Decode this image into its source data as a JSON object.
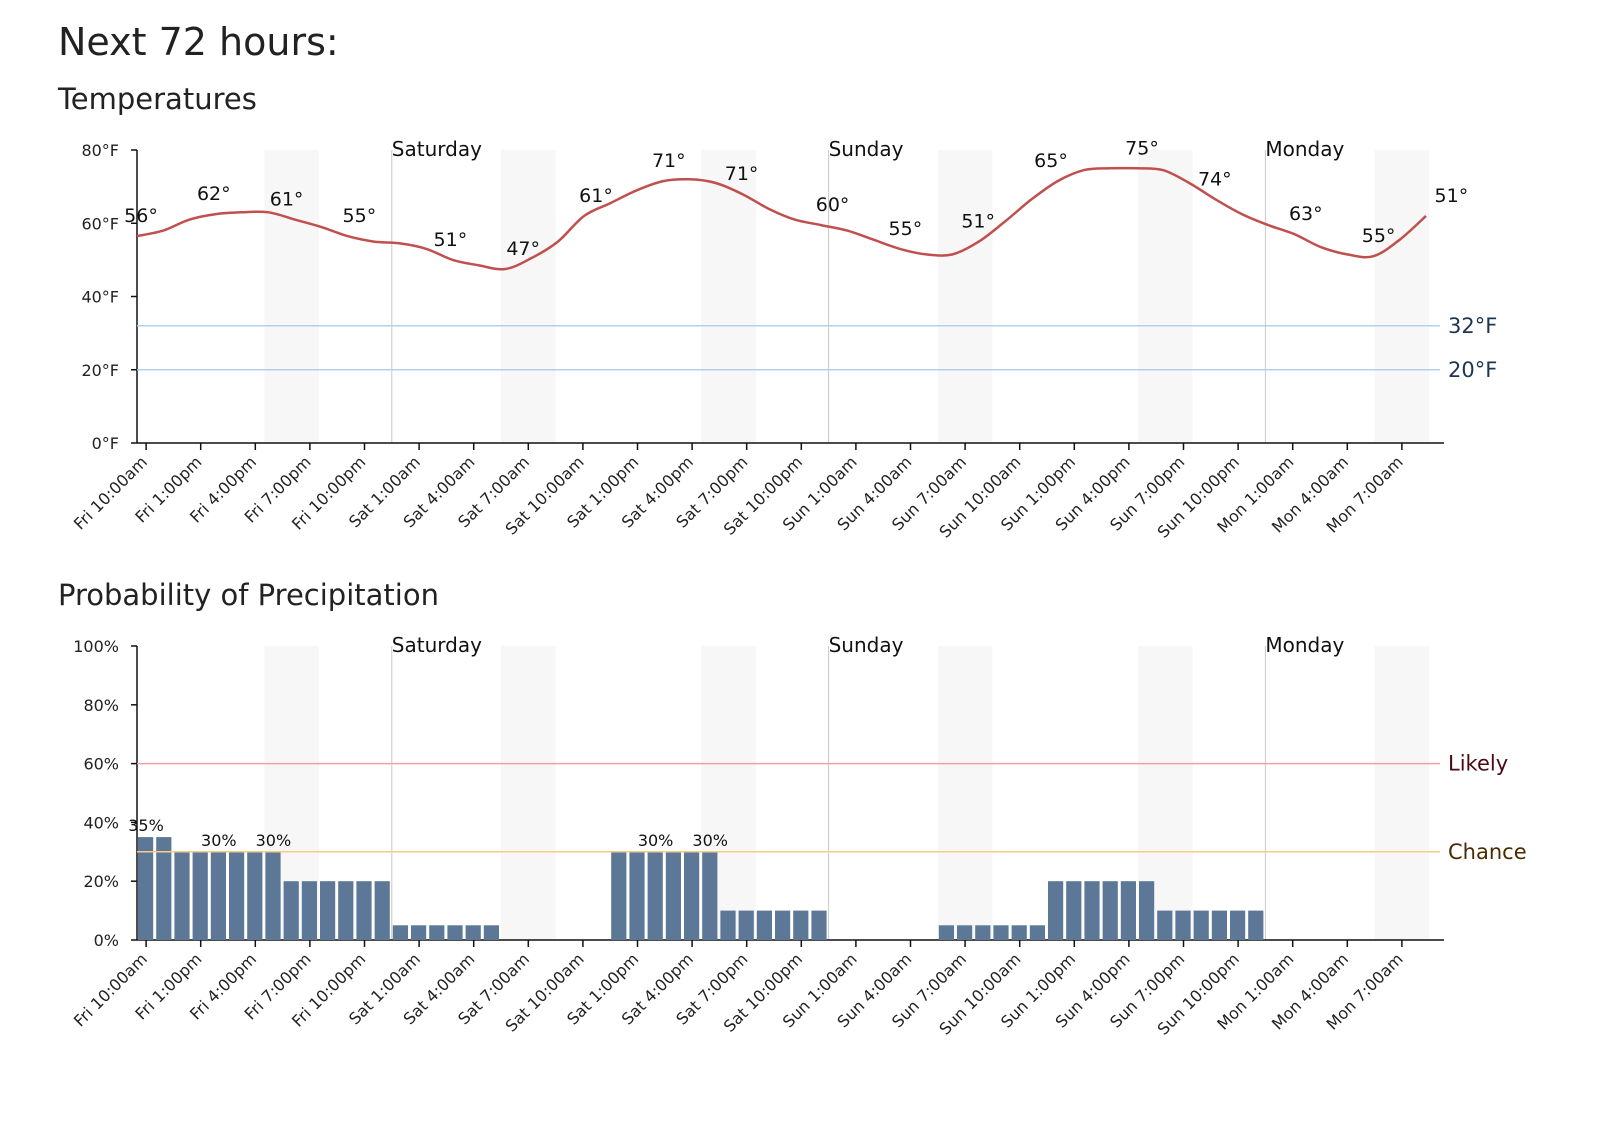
{
  "page": {
    "title": "Next 72 hours:"
  },
  "colors": {
    "temperature_line": "#c0504d",
    "precip_bar": "#5c7896",
    "night_shade": "#f7f7f7",
    "freezing_line": "#b3d0e8",
    "likely_line": "#f2a0a8",
    "chance_line": "#f8cc86",
    "likely_text": "#4a0a14",
    "chance_text": "#4a2a00",
    "ref_temp_text": "#1c3550"
  },
  "time_labels": [
    "Fri 10:00am",
    "Fri 1:00pm",
    "Fri 4:00pm",
    "Fri 7:00pm",
    "Fri 10:00pm",
    "Sat 1:00am",
    "Sat 4:00am",
    "Sat 7:00am",
    "Sat 10:00am",
    "Sat 1:00pm",
    "Sat 4:00pm",
    "Sat 7:00pm",
    "Sat 10:00pm",
    "Sun 1:00am",
    "Sun 4:00am",
    "Sun 7:00am",
    "Sun 10:00am",
    "Sun 1:00pm",
    "Sun 4:00pm",
    "Sun 7:00pm",
    "Sun 10:00pm",
    "Mon 1:00am",
    "Mon 4:00am",
    "Mon 7:00am"
  ],
  "day_labels": [
    "Saturday",
    "Sunday",
    "Monday"
  ],
  "chart_data": [
    {
      "type": "line",
      "title": "Temperatures",
      "y_unit": "°F",
      "ylim": [
        0,
        80
      ],
      "y_ticks": [
        "0°F",
        "20°F",
        "40°F",
        "60°F",
        "80°F"
      ],
      "x_tick_labels": [
        "Fri 10:00am",
        "Fri 1:00pm",
        "Fri 4:00pm",
        "Fri 7:00pm",
        "Fri 10:00pm",
        "Sat 1:00am",
        "Sat 4:00am",
        "Sat 7:00am",
        "Sat 10:00am",
        "Sat 1:00pm",
        "Sat 4:00pm",
        "Sat 7:00pm",
        "Sat 10:00pm",
        "Sun 1:00am",
        "Sun 4:00am",
        "Sun 7:00am",
        "Sun 10:00am",
        "Sun 1:00pm",
        "Sun 4:00pm",
        "Sun 7:00pm",
        "Sun 10:00pm",
        "Mon 1:00am",
        "Mon 4:00am",
        "Mon 7:00am"
      ],
      "series": [
        {
          "values": [
            56.5,
            58,
            61,
            62.5,
            63,
            63,
            61,
            59,
            56.5,
            55,
            54.5,
            53,
            50,
            48.5,
            47.5,
            50.5,
            55,
            62,
            65.5,
            69,
            71.5,
            72,
            71,
            68,
            64,
            61,
            59.5,
            58,
            55.5,
            53,
            51.5,
            51.5,
            55,
            60.5,
            66.5,
            71.5,
            74.5,
            75,
            75,
            74.5,
            71,
            66.5,
            62.5,
            59.5,
            57,
            53.5,
            51.5,
            51,
            55.5,
            62
          ]
        }
      ],
      "data_labels": [
        {
          "hour": 0,
          "text": "56°"
        },
        {
          "hour": 4,
          "text": "62°"
        },
        {
          "hour": 8,
          "text": "61°"
        },
        {
          "hour": 12,
          "text": "55°"
        },
        {
          "hour": 17,
          "text": "51°"
        },
        {
          "hour": 21,
          "text": "47°"
        },
        {
          "hour": 25,
          "text": "61°"
        },
        {
          "hour": 29,
          "text": "71°"
        },
        {
          "hour": 33,
          "text": "71°"
        },
        {
          "hour": 38,
          "text": "60°"
        },
        {
          "hour": 42,
          "text": "55°"
        },
        {
          "hour": 46,
          "text": "51°"
        },
        {
          "hour": 50,
          "text": "65°"
        },
        {
          "hour": 55,
          "text": "75°"
        },
        {
          "hour": 59,
          "text": "74°"
        },
        {
          "hour": 64,
          "text": "63°"
        },
        {
          "hour": 68,
          "text": "55°"
        },
        {
          "hour": 72,
          "text": "51°"
        }
      ],
      "reference_lines": [
        {
          "value": 32,
          "label": "32°F"
        },
        {
          "value": 20,
          "label": "20°F"
        }
      ],
      "day_boundaries": [
        {
          "label": "Saturday",
          "hour": 14
        },
        {
          "label": "Sunday",
          "hour": 38
        },
        {
          "label": "Monday",
          "hour": 62
        }
      ],
      "shaded_hours": [
        [
          7,
          10
        ],
        [
          20,
          23
        ],
        [
          31,
          34
        ],
        [
          44,
          47
        ],
        [
          55,
          58
        ],
        [
          68,
          71
        ]
      ]
    },
    {
      "type": "bar",
      "title": "Probability of Precipitation",
      "y_unit": "%",
      "ylim": [
        0,
        100
      ],
      "y_ticks": [
        "0%",
        "20%",
        "40%",
        "60%",
        "80%",
        "100%"
      ],
      "x_tick_labels": [
        "Fri 10:00am",
        "Fri 1:00pm",
        "Fri 4:00pm",
        "Fri 7:00pm",
        "Fri 10:00pm",
        "Sat 1:00am",
        "Sat 4:00am",
        "Sat 7:00am",
        "Sat 10:00am",
        "Sat 1:00pm",
        "Sat 4:00pm",
        "Sat 7:00pm",
        "Sat 10:00pm",
        "Sun 1:00am",
        "Sun 4:00am",
        "Sun 7:00am",
        "Sun 10:00am",
        "Sun 1:00pm",
        "Sun 4:00pm",
        "Sun 7:00pm",
        "Sun 10:00pm",
        "Mon 1:00am",
        "Mon 4:00am",
        "Mon 7:00am"
      ],
      "values": [
        35,
        35,
        30,
        30,
        30,
        30,
        30,
        30,
        20,
        20,
        20,
        20,
        20,
        20,
        5,
        5,
        5,
        5,
        5,
        5,
        0,
        0,
        0,
        0,
        0,
        0,
        30,
        30,
        30,
        30,
        30,
        30,
        10,
        10,
        10,
        10,
        10,
        10,
        0,
        0,
        0,
        0,
        0,
        0,
        5,
        5,
        5,
        5,
        5,
        5,
        20,
        20,
        20,
        20,
        20,
        20,
        10,
        10,
        10,
        10,
        10,
        10,
        0,
        0,
        0,
        0,
        0,
        0,
        0,
        0,
        0,
        0
      ],
      "data_labels": [
        {
          "hour": 0,
          "text": "35%"
        },
        {
          "hour": 4,
          "text": "30%"
        },
        {
          "hour": 7,
          "text": "30%"
        },
        {
          "hour": 28,
          "text": "30%"
        },
        {
          "hour": 31,
          "text": "30%"
        }
      ],
      "reference_lines": [
        {
          "value": 60,
          "label": "Likely"
        },
        {
          "value": 30,
          "label": "Chance"
        }
      ],
      "day_boundaries": [
        {
          "label": "Saturday",
          "hour": 14
        },
        {
          "label": "Sunday",
          "hour": 38
        },
        {
          "label": "Monday",
          "hour": 62
        }
      ],
      "shaded_hours": [
        [
          7,
          10
        ],
        [
          20,
          23
        ],
        [
          31,
          34
        ],
        [
          44,
          47
        ],
        [
          55,
          58
        ],
        [
          68,
          71
        ]
      ]
    }
  ]
}
